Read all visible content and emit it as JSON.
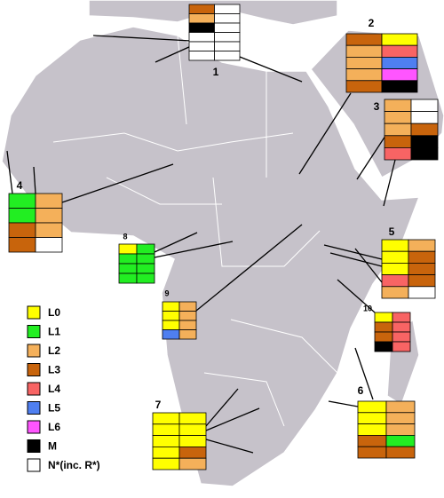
{
  "legend": [
    {
      "label": "L0",
      "color": "#ffff00"
    },
    {
      "label": "L1",
      "color": "#22ee22"
    },
    {
      "label": "L2",
      "color": "#f4b05a"
    },
    {
      "label": "L3",
      "color": "#c8640c"
    },
    {
      "label": "L4",
      "color": "#f86464"
    },
    {
      "label": "L5",
      "color": "#4f7ff0"
    },
    {
      "label": "L6",
      "color": "#ff55ff"
    },
    {
      "label": "M",
      "color": "#000000"
    },
    {
      "label": "N*(inc. R*)",
      "color": "#ffffff"
    }
  ],
  "regions": [
    "1",
    "2",
    "3",
    "4",
    "5",
    "6",
    "7",
    "8",
    "9",
    "10"
  ]
}
